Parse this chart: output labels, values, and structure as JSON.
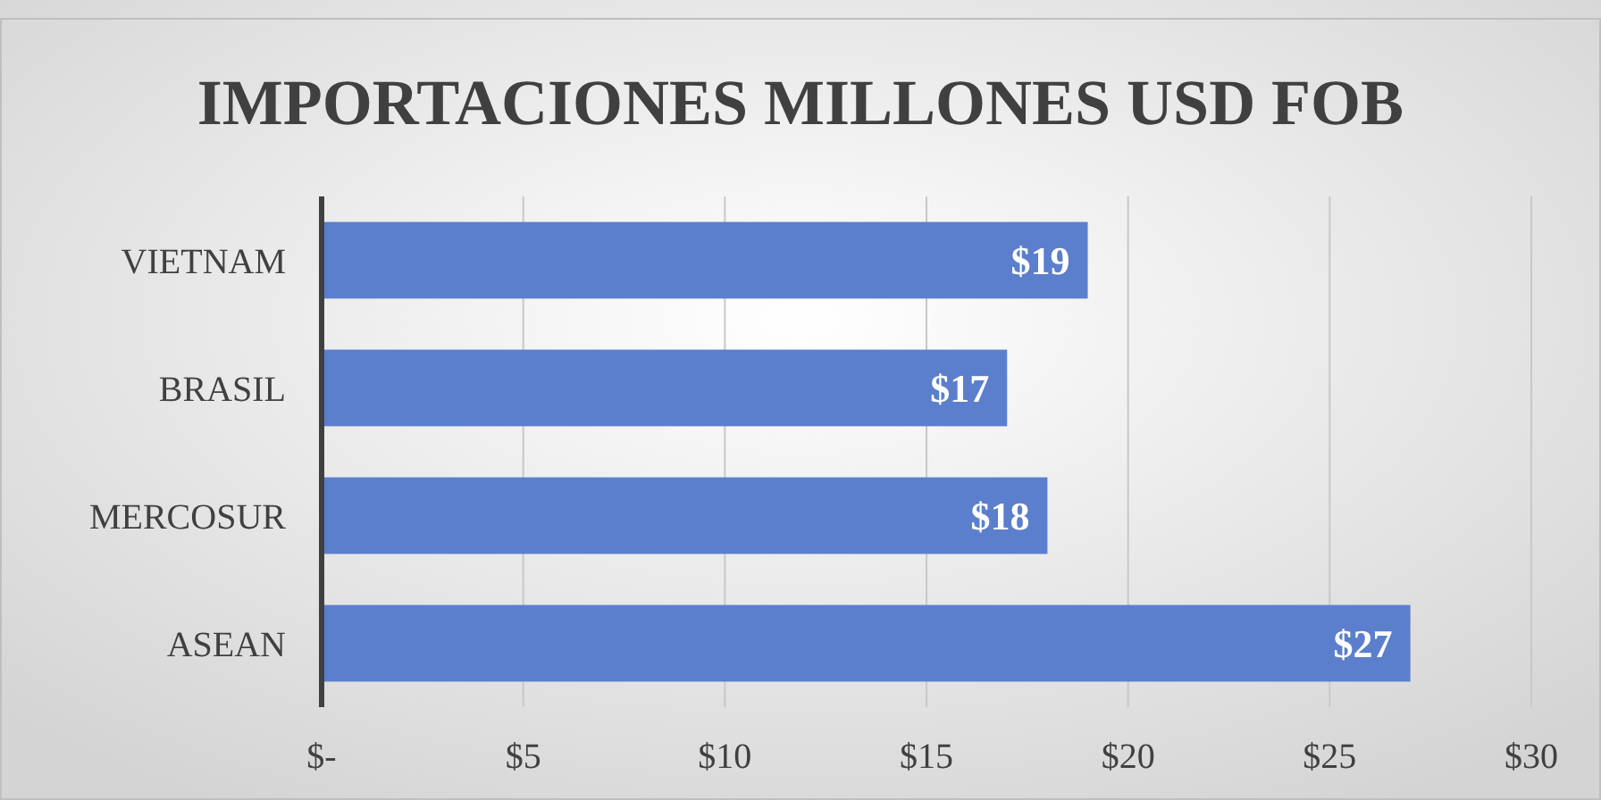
{
  "chart_data": {
    "type": "bar",
    "orientation": "horizontal",
    "title": "IMPORTACIONES MILLONES USD FOB",
    "categories": [
      "VIETNAM",
      "BRASIL",
      "MERCOSUR",
      "ASEAN"
    ],
    "values": [
      19,
      17,
      18,
      27
    ],
    "color": "#5b7fcc",
    "value_labels": [
      "$19",
      "$17",
      "$18",
      "$27"
    ],
    "xlim": [
      0,
      30
    ],
    "xticks": [
      {
        "value": 0,
        "label": "$-"
      },
      {
        "value": 5,
        "label": "$5"
      },
      {
        "value": 10,
        "label": "$10"
      },
      {
        "value": 15,
        "label": "$15"
      },
      {
        "value": 20,
        "label": "$20"
      },
      {
        "value": 25,
        "label": "$25"
      },
      {
        "value": 30,
        "label": "$30"
      }
    ],
    "grid": "x"
  }
}
